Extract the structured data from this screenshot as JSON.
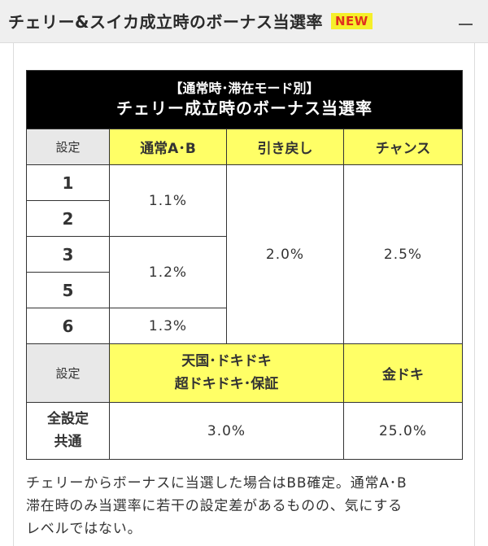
{
  "header": {
    "title": "チェリー&スイカ成立時のボーナス当選率",
    "badge": "NEW"
  },
  "table": {
    "title_line1": "【通常時･滞在モード別】",
    "title_line2": "チェリー成立時のボーナス当選率",
    "col_setting": "設定",
    "col_normal": "通常A･B",
    "col_hikimodoshi": "引き戻し",
    "col_chance": "チャンス",
    "settings": [
      "1",
      "2",
      "3",
      "5",
      "6"
    ],
    "normal_values": [
      "1.1%",
      "1.2%",
      "1.3%"
    ],
    "hikimodoshi_value": "2.0%",
    "chance_value": "2.5%",
    "col_setting2": "設定",
    "col_tengoku_line1": "天国･ドキドキ",
    "col_tengoku_line2": "超ドキドキ･保証",
    "col_kindoki": "金ドキ",
    "common_line1": "全設定",
    "common_line2": "共通",
    "tengoku_value": "3.0%",
    "kindoki_value": "25.0%"
  },
  "note": {
    "line1": "チェリーからボーナスに当選した場合はBB確定。通常A･B",
    "line2": "滞在時のみ当選率に若干の設定差があるものの、気にする",
    "line3": "レベルではない。"
  },
  "colors": {
    "header_bg": "#efefef",
    "highlight": "#ffff66",
    "badge_bg": "#f5ef2a",
    "badge_text": "#e0301e"
  }
}
